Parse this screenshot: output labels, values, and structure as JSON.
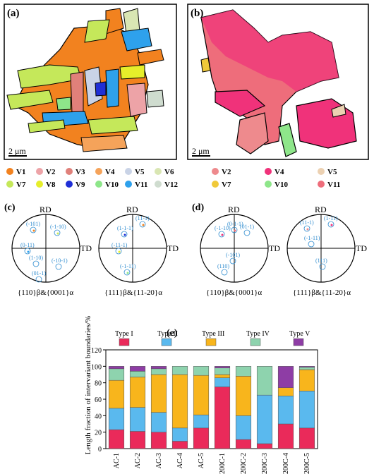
{
  "panels": {
    "a": "(a)",
    "b": "(b)",
    "c": "(c)",
    "d": "(d)",
    "e": "(e)"
  },
  "scale_bar": "2 μm",
  "variant_colors": {
    "V1": "#f2821f",
    "V2": "#eda3a7",
    "V3": "#e0807a",
    "V4": "#f5a35a",
    "V5": "#c9d3e6",
    "V6": "#d9e6b3",
    "V7": "#c5e85a",
    "V8": "#e6ee2a",
    "V9": "#1f2fd6",
    "V10": "#8ee68a",
    "V11": "#2ea1ec",
    "V12": "#cfdccf"
  },
  "legend_a": [
    [
      "V1",
      "V2",
      "V3",
      "V4",
      "V5",
      "V6"
    ],
    [
      "V7",
      "V8",
      "V9",
      "V10",
      "V11",
      "V12"
    ]
  ],
  "legend_b": [
    {
      "label": "V2",
      "color": "#ee8a8d"
    },
    {
      "label": "V4",
      "color": "#f0327a"
    },
    {
      "label": "V5",
      "color": "#ecd1b2"
    },
    {
      "label": "V7",
      "color": "#f0c93a"
    },
    {
      "label": "V10",
      "color": "#8ee68a"
    },
    {
      "label": "V11",
      "color": "#ee6d7b"
    }
  ],
  "pole_figures": {
    "rd": "RD",
    "td": "TD",
    "caption_left": "{110}β&{0001}α",
    "caption_right": "{111}β&{11-20}α",
    "c_left_labels": [
      "(-101)",
      "(-1-10)",
      "(0-11)",
      "(1-10)",
      "(-10-1)",
      "(01-1)"
    ],
    "c_right_labels": [
      "(11-1)",
      "(1-1-1)",
      "(-11-1)",
      "(-1-11)"
    ],
    "d_left_labels": [
      "(-1-10)",
      "(0-1-1)",
      "(01-1)",
      "(-101)",
      "(110)"
    ],
    "d_right_labels": [
      "(1-11)",
      "(11-1)",
      "(-1-11)",
      "(111)"
    ]
  },
  "chart_data": {
    "type": "bar",
    "stacked": true,
    "ylabel": "Length fraction of intervariant boundaries/%",
    "ylim": [
      0,
      120
    ],
    "yticks": [
      0,
      20,
      40,
      60,
      80,
      100,
      120
    ],
    "categories": [
      "AC-1",
      "AC-2",
      "AC-3",
      "AC-4",
      "AC-5",
      "200C-1",
      "200C-2",
      "200C-3",
      "200C-4",
      "200C-5"
    ],
    "series": [
      {
        "name": "Type I",
        "color": "#ea2a5a",
        "values": [
          23,
          21,
          20,
          9,
          25,
          75,
          11,
          6,
          30,
          25
        ]
      },
      {
        "name": "Type II",
        "color": "#5ab9ee",
        "values": [
          26,
          29,
          24,
          16,
          16,
          11,
          29,
          59,
          34,
          45
        ]
      },
      {
        "name": "Type III",
        "color": "#f8b51c",
        "values": [
          34,
          37,
          46,
          65,
          48,
          4,
          48,
          0,
          10,
          26
        ]
      },
      {
        "name": "Type IV",
        "color": "#8ed3ae",
        "values": [
          14,
          7,
          7,
          10,
          11,
          8,
          12,
          35,
          0,
          3
        ]
      },
      {
        "name": "Type V",
        "color": "#8e3da5",
        "values": [
          3,
          6,
          3,
          0,
          0,
          2,
          0,
          0,
          26,
          1
        ]
      }
    ]
  }
}
